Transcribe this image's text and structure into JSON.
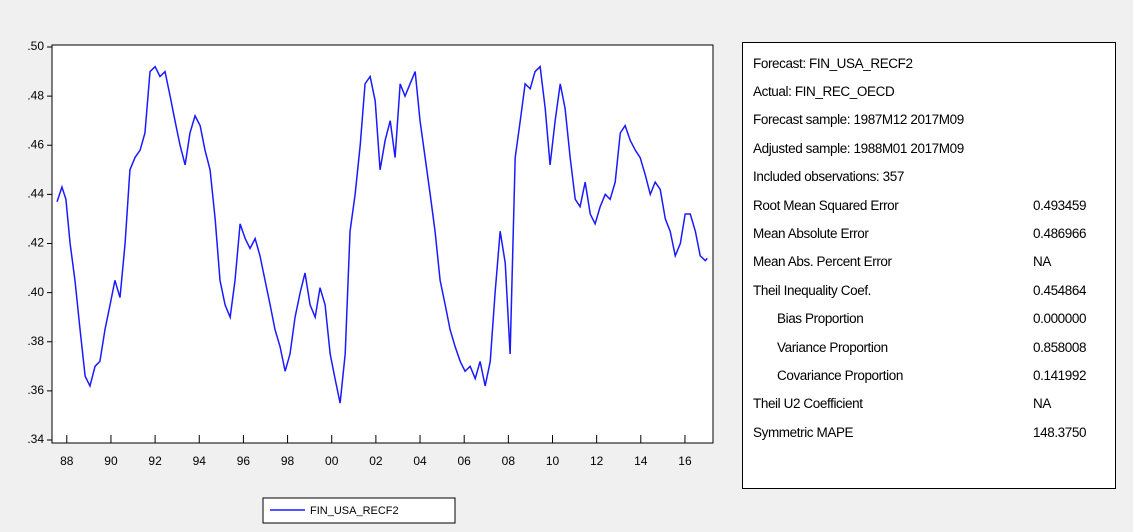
{
  "chart_data": {
    "type": "line",
    "x": [
      1988.06,
      1988.28,
      1988.46,
      1988.65,
      1988.87,
      1989.1,
      1989.33,
      1989.55,
      1989.78,
      1990.0,
      1990.23,
      1990.46,
      1990.68,
      1990.91,
      1991.14,
      1991.36,
      1991.59,
      1991.82,
      1992.04,
      1992.27,
      1992.5,
      1992.72,
      1992.95,
      1993.18,
      1993.4,
      1993.63,
      1993.86,
      1994.08,
      1994.31,
      1994.54,
      1994.76,
      1994.99,
      1995.22,
      1995.44,
      1995.67,
      1995.9,
      1996.12,
      1996.35,
      1996.58,
      1996.8,
      1997.03,
      1997.25,
      1997.48,
      1997.71,
      1997.93,
      1998.16,
      1998.39,
      1998.61,
      1998.84,
      1999.07,
      1999.29,
      1999.52,
      1999.75,
      1999.97,
      2000.2,
      2000.43,
      2000.65,
      2000.88,
      2001.11,
      2001.33,
      2001.56,
      2001.79,
      2002.01,
      2002.24,
      2002.47,
      2002.69,
      2002.92,
      2003.15,
      2003.37,
      2003.6,
      2003.82,
      2004.05,
      2004.28,
      2004.5,
      2004.73,
      2004.96,
      2005.18,
      2005.41,
      2005.64,
      2005.86,
      2006.09,
      2006.32,
      2006.54,
      2006.77,
      2007.0,
      2007.22,
      2007.45,
      2007.68,
      2007.9,
      2008.13,
      2008.36,
      2008.58,
      2008.81,
      2009.04,
      2009.26,
      2009.49,
      2009.71,
      2009.94,
      2010.17,
      2010.39,
      2010.62,
      2010.85,
      2011.07,
      2011.3,
      2011.53,
      2011.75,
      2011.98,
      2012.21,
      2012.43,
      2012.66,
      2012.89,
      2013.11,
      2013.34,
      2013.57,
      2013.79,
      2014.02,
      2014.25,
      2014.47,
      2014.7,
      2014.93,
      2015.15,
      2015.38,
      2015.61,
      2015.83,
      2016.06,
      2016.29,
      2016.51,
      2016.74,
      2016.97,
      2017.19,
      2017.42,
      2017.51
    ],
    "series": [
      {
        "name": "FIN_USA_RECF2",
        "color": "#1a1aff",
        "values": [
          0.437,
          0.443,
          0.438,
          0.42,
          0.405,
          0.385,
          0.366,
          0.362,
          0.37,
          0.372,
          0.385,
          0.395,
          0.405,
          0.398,
          0.42,
          0.45,
          0.455,
          0.458,
          0.465,
          0.49,
          0.492,
          0.488,
          0.49,
          0.48,
          0.47,
          0.46,
          0.452,
          0.465,
          0.472,
          0.468,
          0.458,
          0.45,
          0.43,
          0.405,
          0.395,
          0.39,
          0.405,
          0.428,
          0.422,
          0.418,
          0.422,
          0.415,
          0.405,
          0.395,
          0.385,
          0.378,
          0.368,
          0.375,
          0.39,
          0.4,
          0.408,
          0.395,
          0.39,
          0.402,
          0.395,
          0.375,
          0.365,
          0.355,
          0.375,
          0.425,
          0.44,
          0.46,
          0.485,
          0.488,
          0.478,
          0.45,
          0.462,
          0.47,
          0.455,
          0.485,
          0.48,
          0.485,
          0.49,
          0.47,
          0.455,
          0.44,
          0.425,
          0.405,
          0.395,
          0.385,
          0.378,
          0.372,
          0.368,
          0.37,
          0.365,
          0.372,
          0.362,
          0.372,
          0.4,
          0.425,
          0.412,
          0.375,
          0.455,
          0.47,
          0.485,
          0.483,
          0.49,
          0.492,
          0.475,
          0.452,
          0.47,
          0.485,
          0.475,
          0.455,
          0.438,
          0.435,
          0.445,
          0.432,
          0.428,
          0.435,
          0.44,
          0.438,
          0.445,
          0.465,
          0.468,
          0.462,
          0.458,
          0.455,
          0.448,
          0.44,
          0.445,
          0.442,
          0.43,
          0.425,
          0.415,
          0.42,
          0.432,
          0.432,
          0.425,
          0.415,
          0.413,
          0.414
        ]
      }
    ],
    "xlim": [
      1987.83,
      2017.77
    ],
    "xticks": [
      {
        "value": 1988.5,
        "label": "88"
      },
      {
        "value": 1990.5,
        "label": "90"
      },
      {
        "value": 1992.5,
        "label": "92"
      },
      {
        "value": 1994.5,
        "label": "94"
      },
      {
        "value": 1996.5,
        "label": "96"
      },
      {
        "value": 1998.5,
        "label": "98"
      },
      {
        "value": 2000.5,
        "label": "00"
      },
      {
        "value": 2002.5,
        "label": "02"
      },
      {
        "value": 2004.5,
        "label": "04"
      },
      {
        "value": 2006.5,
        "label": "06"
      },
      {
        "value": 2008.5,
        "label": "08"
      },
      {
        "value": 2010.5,
        "label": "10"
      },
      {
        "value": 2012.5,
        "label": "12"
      },
      {
        "value": 2014.5,
        "label": "14"
      },
      {
        "value": 2016.5,
        "label": "16"
      }
    ],
    "ylim": [
      0.34,
      0.5
    ],
    "yticks": [
      {
        "value": 0.34,
        "label": ".34"
      },
      {
        "value": 0.36,
        "label": ".36"
      },
      {
        "value": 0.38,
        "label": ".38"
      },
      {
        "value": 0.4,
        "label": ".40"
      },
      {
        "value": 0.42,
        "label": ".42"
      },
      {
        "value": 0.44,
        "label": ".44"
      },
      {
        "value": 0.46,
        "label": ".46"
      },
      {
        "value": 0.48,
        "label": ".48"
      },
      {
        "value": 0.5,
        "label": ".50"
      }
    ],
    "legend": "bottom"
  },
  "stats_table": {
    "rows": [
      [
        "Forecast: FIN_USA_RECF2"
      ],
      [
        "Actual: FIN_REC_OECD"
      ],
      [
        "Forecast sample: 1987M12 2017M09"
      ],
      [
        "Adjusted sample: 1988M01 2017M09"
      ],
      [
        "Included observations: 357"
      ],
      [
        "Root Mean Squared Error",
        "0.493459"
      ],
      [
        "Mean Absolute Error",
        "0.486966"
      ],
      [
        "Mean Abs. Percent Error",
        "NA"
      ],
      [
        "Theil Inequality Coef.",
        "0.454864"
      ],
      [
        "Bias Proportion",
        "0.000000"
      ],
      [
        "Variance Proportion",
        "0.858008"
      ],
      [
        "Covariance Proportion",
        "0.141992"
      ],
      [
        "Theil U2 Coefficient",
        "NA"
      ],
      [
        "Symmetric MAPE",
        "148.3750"
      ]
    ]
  }
}
